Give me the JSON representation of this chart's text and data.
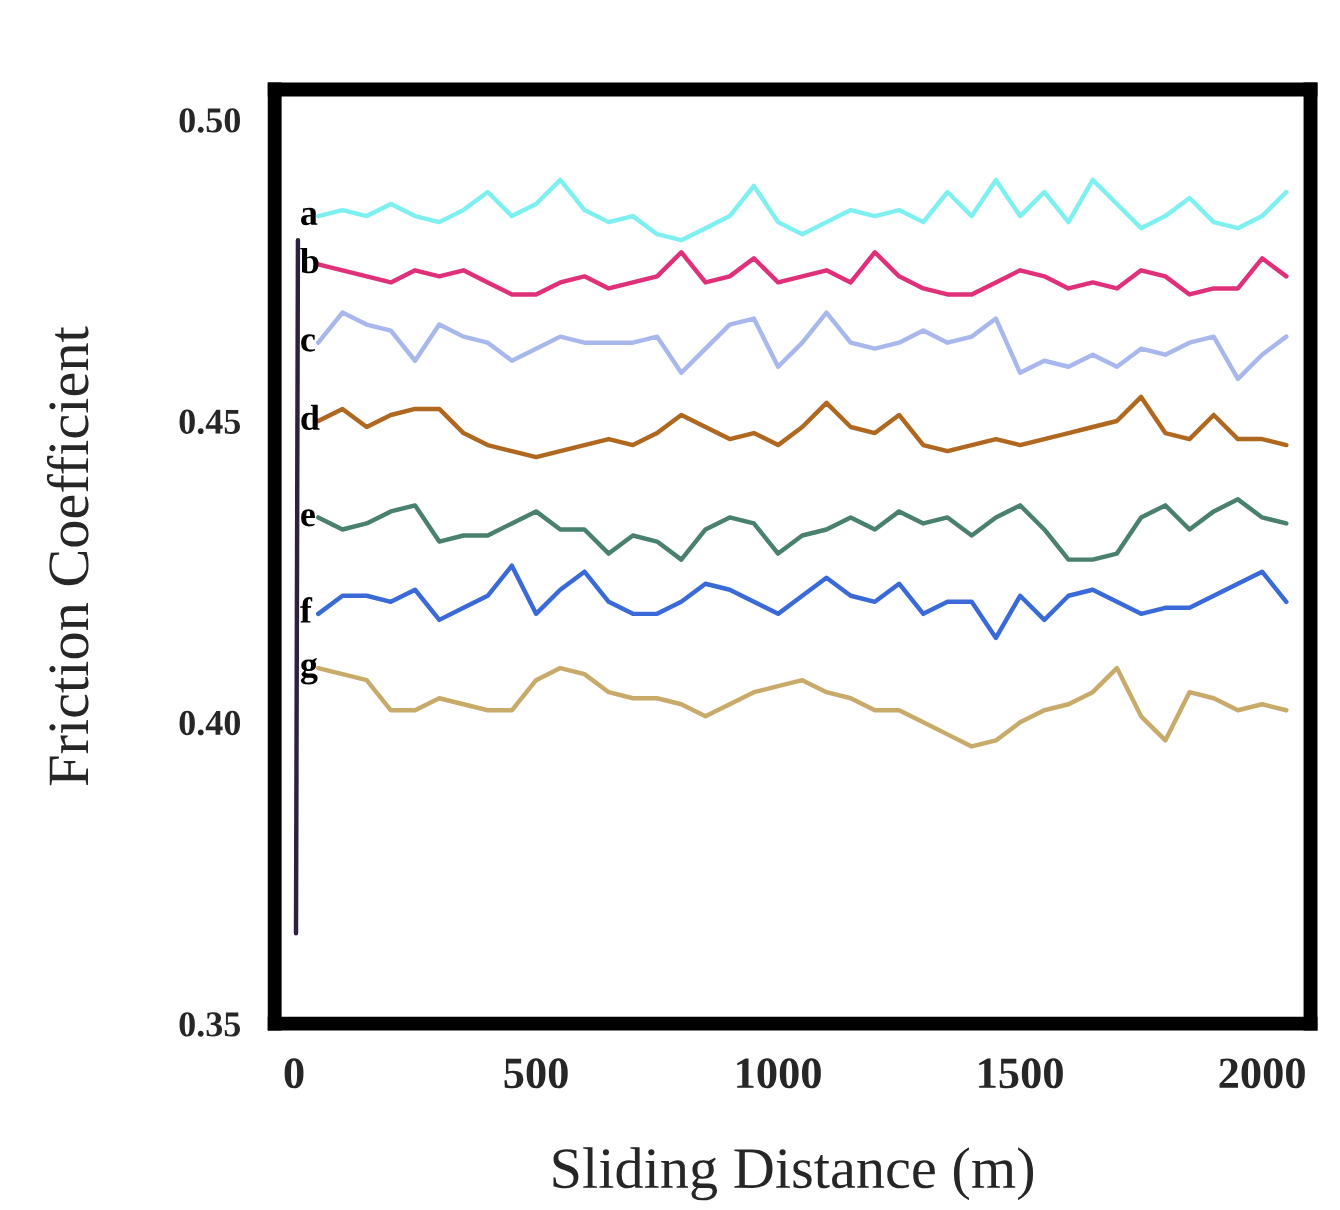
{
  "chart_data": {
    "type": "line",
    "xlabel": "Sliding Distance (m)",
    "ylabel": "Friction Coefficient",
    "x": [
      50,
      100,
      150,
      200,
      250,
      300,
      350,
      400,
      450,
      500,
      550,
      600,
      650,
      700,
      750,
      800,
      850,
      900,
      950,
      1000,
      1050,
      1100,
      1150,
      1200,
      1250,
      1300,
      1350,
      1400,
      1450,
      1500,
      1550,
      1600,
      1650,
      1700,
      1750,
      1800,
      1850,
      1900,
      1950,
      2000,
      2050
    ],
    "series": [
      {
        "name": "a",
        "color": "#7ff0f0",
        "values": [
          0.484,
          0.485,
          0.484,
          0.486,
          0.484,
          0.483,
          0.485,
          0.488,
          0.484,
          0.486,
          0.49,
          0.485,
          0.483,
          0.484,
          0.481,
          0.48,
          0.482,
          0.484,
          0.489,
          0.483,
          0.481,
          0.483,
          0.485,
          0.484,
          0.485,
          0.483,
          0.488,
          0.484,
          0.49,
          0.484,
          0.488,
          0.483,
          0.49,
          0.486,
          0.482,
          0.484,
          0.487,
          0.483,
          0.482,
          0.484,
          0.488
        ]
      },
      {
        "name": "b",
        "color": "#e0307a",
        "values": [
          0.476,
          0.475,
          0.474,
          0.473,
          0.475,
          0.474,
          0.475,
          0.473,
          0.471,
          0.471,
          0.473,
          0.474,
          0.472,
          0.473,
          0.474,
          0.478,
          0.473,
          0.474,
          0.477,
          0.473,
          0.474,
          0.475,
          0.473,
          0.478,
          0.474,
          0.472,
          0.471,
          0.471,
          0.473,
          0.475,
          0.474,
          0.472,
          0.473,
          0.472,
          0.475,
          0.474,
          0.471,
          0.472,
          0.472,
          0.477,
          0.474
        ]
      },
      {
        "name": "c",
        "color": "#a8b8ec",
        "values": [
          0.463,
          0.468,
          0.466,
          0.465,
          0.46,
          0.466,
          0.464,
          0.463,
          0.46,
          0.462,
          0.464,
          0.463,
          0.463,
          0.463,
          0.464,
          0.458,
          0.462,
          0.466,
          0.467,
          0.459,
          0.463,
          0.468,
          0.463,
          0.462,
          0.463,
          0.465,
          0.463,
          0.464,
          0.467,
          0.458,
          0.46,
          0.459,
          0.461,
          0.459,
          0.462,
          0.461,
          0.463,
          0.464,
          0.457,
          0.461,
          0.464
        ]
      },
      {
        "name": "d",
        "color": "#b06820",
        "values": [
          0.45,
          0.452,
          0.449,
          0.451,
          0.452,
          0.452,
          0.448,
          0.446,
          0.445,
          0.444,
          0.445,
          0.446,
          0.447,
          0.446,
          0.448,
          0.451,
          0.449,
          0.447,
          0.448,
          0.446,
          0.449,
          0.453,
          0.449,
          0.448,
          0.451,
          0.446,
          0.445,
          0.446,
          0.447,
          0.446,
          0.447,
          0.448,
          0.449,
          0.45,
          0.454,
          0.448,
          0.447,
          0.451,
          0.447,
          0.447,
          0.446
        ]
      },
      {
        "name": "e",
        "color": "#4a8070",
        "values": [
          0.434,
          0.432,
          0.433,
          0.435,
          0.436,
          0.43,
          0.431,
          0.431,
          0.433,
          0.435,
          0.432,
          0.432,
          0.428,
          0.431,
          0.43,
          0.427,
          0.432,
          0.434,
          0.433,
          0.428,
          0.431,
          0.432,
          0.434,
          0.432,
          0.435,
          0.433,
          0.434,
          0.431,
          0.434,
          0.436,
          0.432,
          0.427,
          0.427,
          0.428,
          0.434,
          0.436,
          0.432,
          0.435,
          0.437,
          0.434,
          0.433
        ]
      },
      {
        "name": "f",
        "color": "#3a6ad8",
        "values": [
          0.418,
          0.421,
          0.421,
          0.42,
          0.422,
          0.417,
          0.419,
          0.421,
          0.426,
          0.418,
          0.422,
          0.425,
          0.42,
          0.418,
          0.418,
          0.42,
          0.423,
          0.422,
          0.42,
          0.418,
          0.421,
          0.424,
          0.421,
          0.42,
          0.423,
          0.418,
          0.42,
          0.42,
          0.414,
          0.421,
          0.417,
          0.421,
          0.422,
          0.42,
          0.418,
          0.419,
          0.419,
          0.421,
          0.423,
          0.425,
          0.42
        ]
      },
      {
        "name": "g",
        "color": "#c8aa6a",
        "values": [
          0.409,
          0.408,
          0.407,
          0.402,
          0.402,
          0.404,
          0.403,
          0.402,
          0.402,
          0.407,
          0.409,
          0.408,
          0.405,
          0.404,
          0.404,
          0.403,
          0.401,
          0.403,
          0.405,
          0.406,
          0.407,
          0.405,
          0.404,
          0.402,
          0.402,
          0.4,
          0.398,
          0.396,
          0.397,
          0.4,
          0.402,
          0.403,
          0.405,
          0.409,
          0.401,
          0.397,
          0.405,
          0.404,
          0.402,
          0.403,
          0.402
        ]
      },
      {
        "color": "#302040",
        "x": [
          8,
          4
        ],
        "values": [
          0.48,
          0.365
        ]
      }
    ],
    "xlim": [
      -40,
      2100
    ],
    "ylim": [
      0.35,
      0.505
    ],
    "xticks": [
      0,
      500,
      1000,
      1500,
      2000
    ],
    "yticks": [
      {
        "value": 0.35,
        "label": "0.35"
      },
      {
        "value": 0.4,
        "label": "0.40"
      },
      {
        "value": 0.45,
        "label": "0.45"
      },
      {
        "value": 0.5,
        "label": "0.50"
      }
    ],
    "grid": false,
    "legend": false,
    "marker": "none",
    "line_style": "solid"
  }
}
